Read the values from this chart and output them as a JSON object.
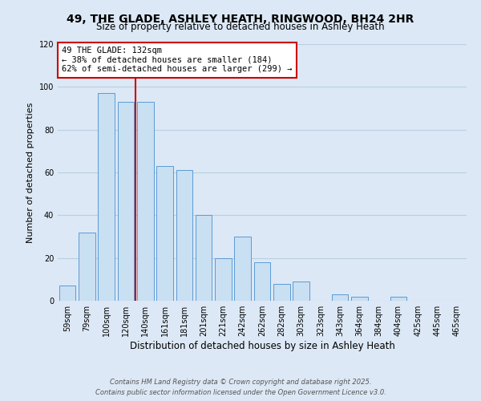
{
  "title": "49, THE GLADE, ASHLEY HEATH, RINGWOOD, BH24 2HR",
  "subtitle": "Size of property relative to detached houses in Ashley Heath",
  "xlabel": "Distribution of detached houses by size in Ashley Heath",
  "ylabel": "Number of detached properties",
  "bar_labels": [
    "59sqm",
    "79sqm",
    "100sqm",
    "120sqm",
    "140sqm",
    "161sqm",
    "181sqm",
    "201sqm",
    "221sqm",
    "242sqm",
    "262sqm",
    "282sqm",
    "303sqm",
    "323sqm",
    "343sqm",
    "364sqm",
    "384sqm",
    "404sqm",
    "425sqm",
    "445sqm",
    "465sqm"
  ],
  "bar_values": [
    7,
    32,
    97,
    93,
    93,
    63,
    61,
    40,
    20,
    30,
    18,
    8,
    9,
    0,
    3,
    2,
    0,
    2,
    0,
    0,
    0
  ],
  "bar_color": "#c9dff2",
  "bar_edgecolor": "#5b9bd5",
  "ylim": [
    0,
    120
  ],
  "yticks": [
    0,
    20,
    40,
    60,
    80,
    100,
    120
  ],
  "vline_color": "#cc0000",
  "annotation_text": "49 THE GLADE: 132sqm\n← 38% of detached houses are smaller (184)\n62% of semi-detached houses are larger (299) →",
  "annotation_box_edgecolor": "#cc0000",
  "footer_line1": "Contains HM Land Registry data © Crown copyright and database right 2025.",
  "footer_line2": "Contains public sector information licensed under the Open Government Licence v3.0.",
  "background_color": "#dce8f5",
  "grid_color": "#b8cfe0",
  "vline_index": 3.5
}
